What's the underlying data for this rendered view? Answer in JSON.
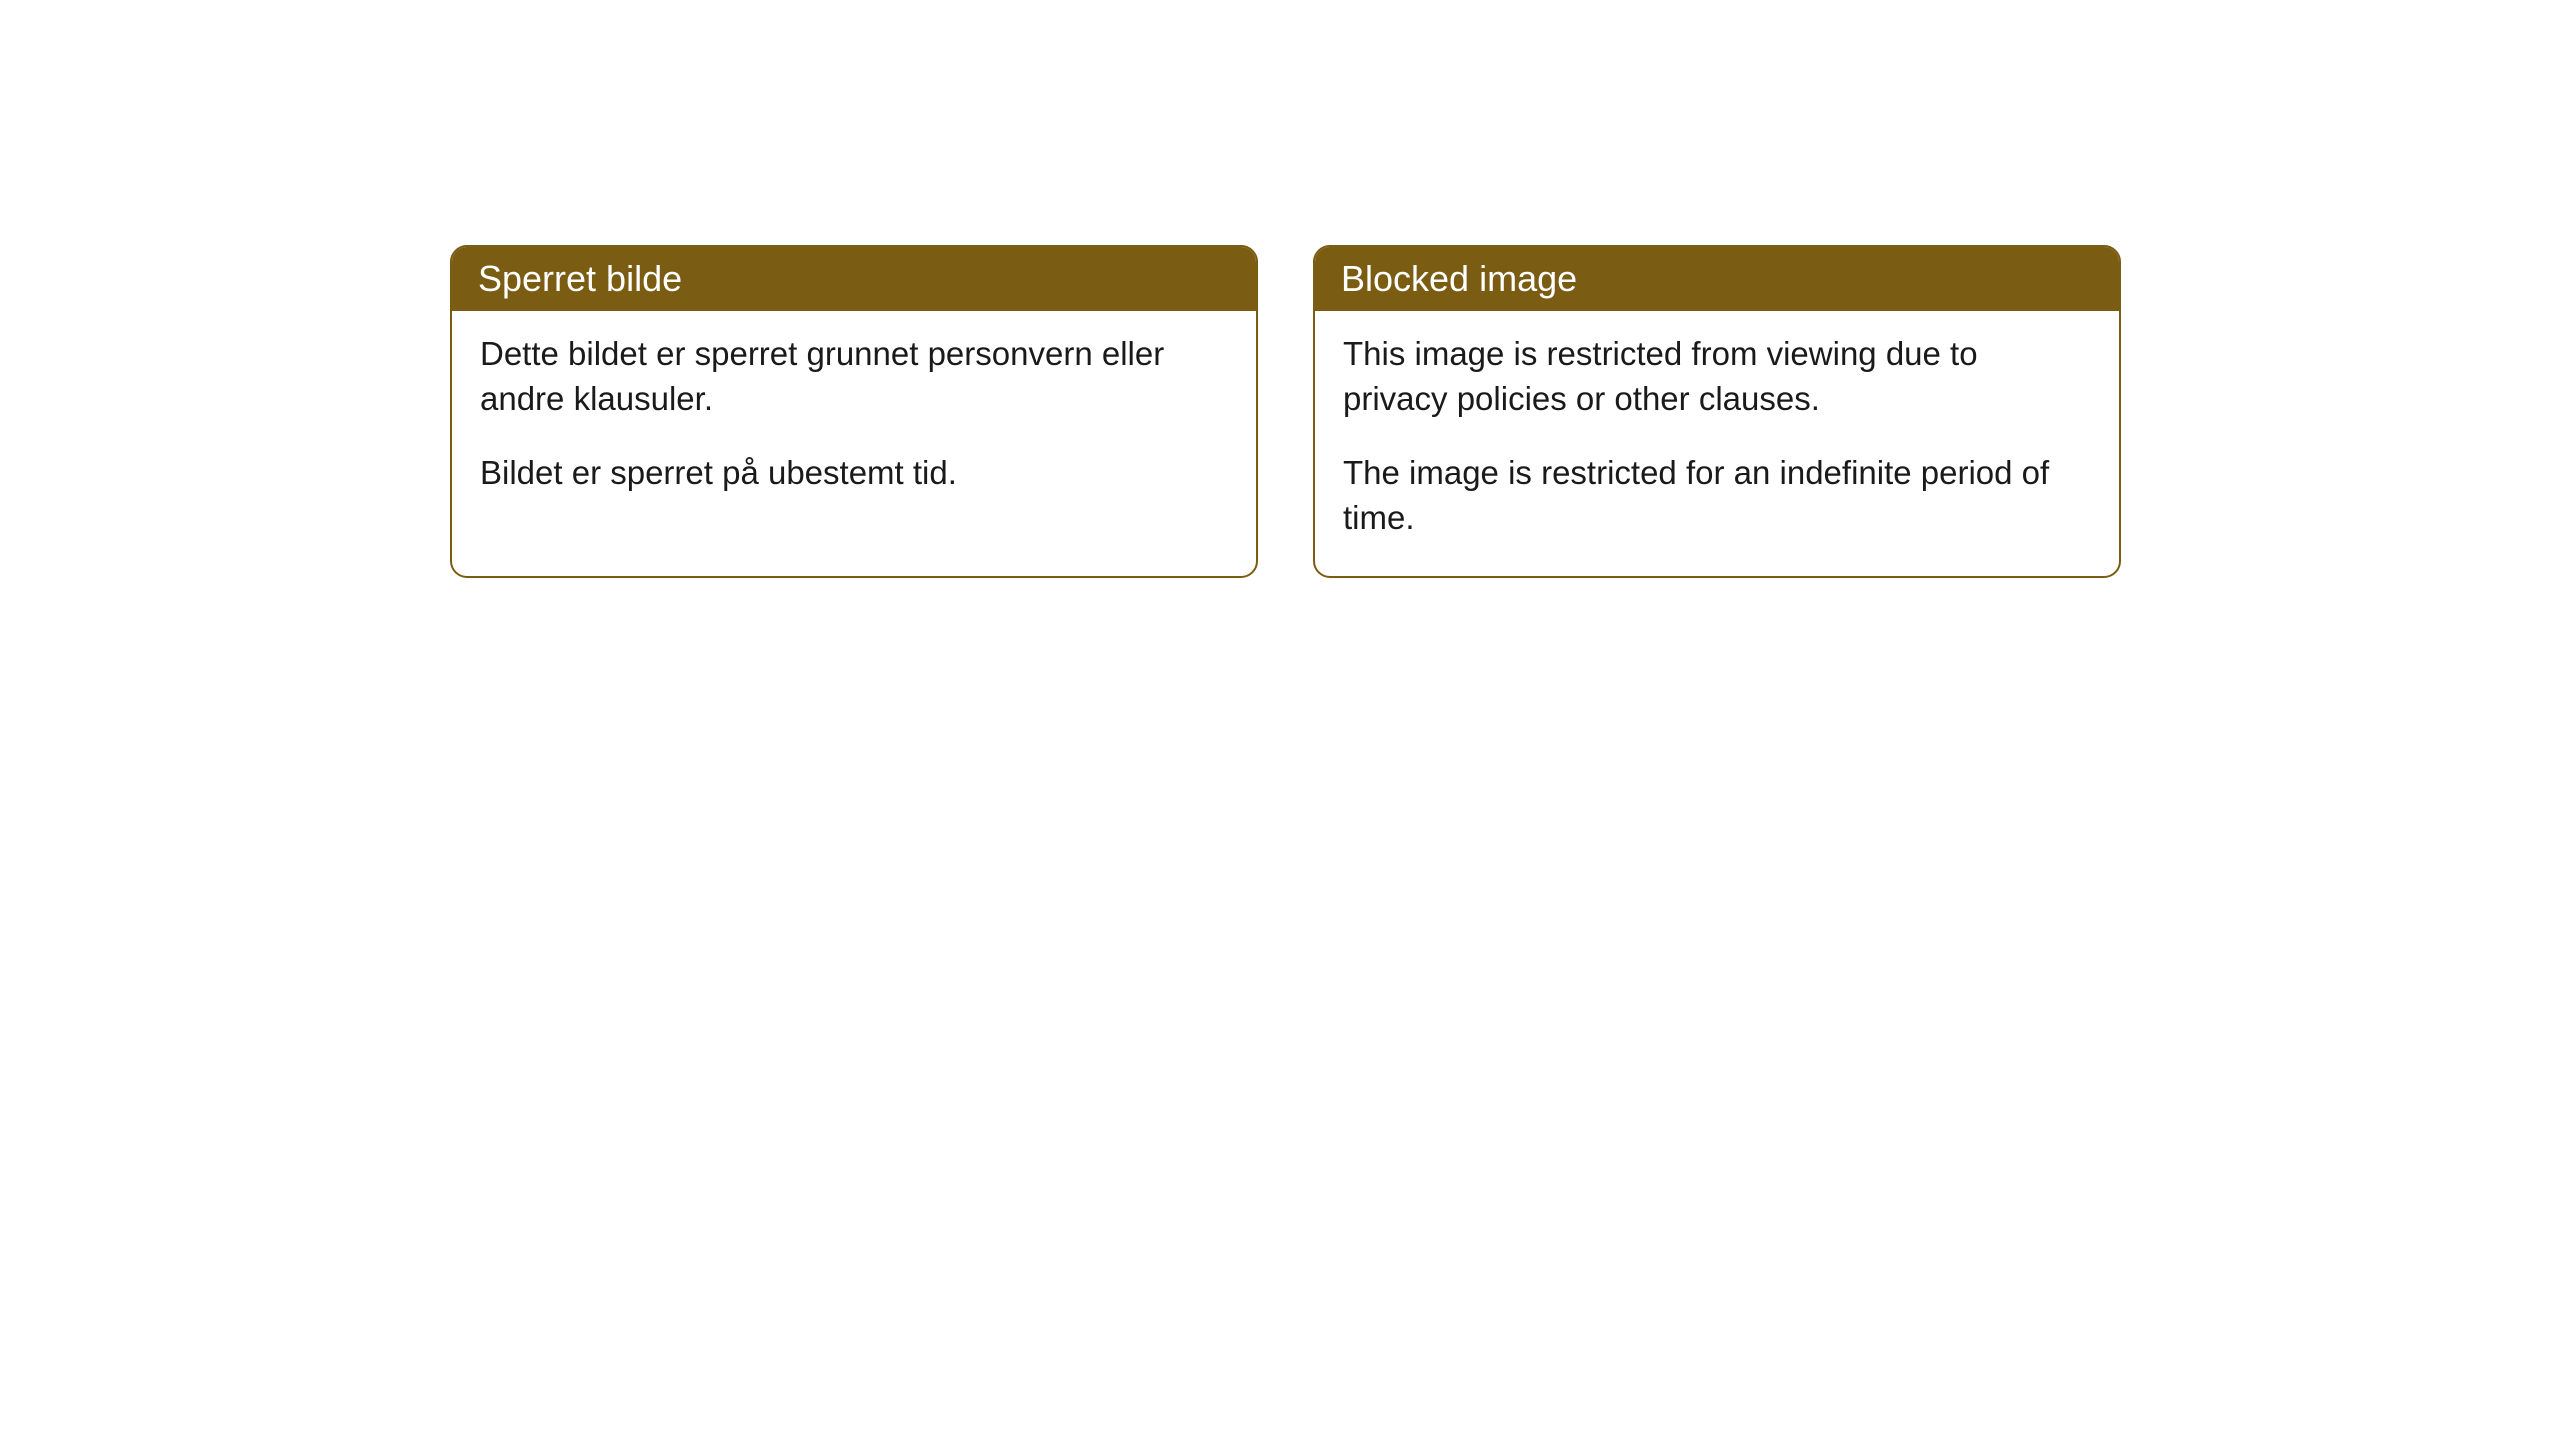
{
  "cards": [
    {
      "title": "Sperret bilde",
      "paragraph1": "Dette bildet er sperret grunnet personvern eller andre klausuler.",
      "paragraph2": "Bildet er sperret på ubestemt tid."
    },
    {
      "title": "Blocked image",
      "paragraph1": "This image is restricted from viewing due to privacy policies or other clauses.",
      "paragraph2": "The image is restricted for an indefinite period of time."
    }
  ],
  "style": {
    "header_background": "#7a5c12",
    "header_text_color": "#ffffff",
    "border_color": "#7a5c12",
    "body_background": "#ffffff",
    "body_text_color": "#1a1a1a",
    "border_radius": 17,
    "title_fontsize": 36,
    "body_fontsize": 33
  }
}
